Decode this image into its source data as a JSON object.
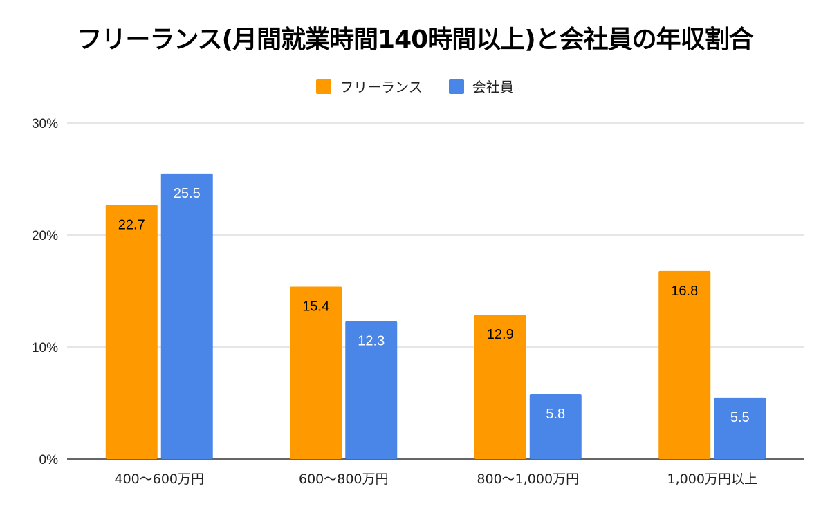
{
  "chart_data": {
    "type": "bar",
    "title": "フリーランス(月間就業時間140時間以上)と会社員の年収割合",
    "categories": [
      "400〜600万円",
      "600〜800万円",
      "800〜1,000万円",
      "1,000万円以上"
    ],
    "series": [
      {
        "name": "フリーランス",
        "color": "#FF9900",
        "label_color": "#000000",
        "values": [
          22.7,
          15.4,
          12.9,
          16.8
        ],
        "labels": [
          "22.7",
          "15.4",
          "12.9",
          "16.8"
        ]
      },
      {
        "name": "会社員",
        "color": "#4A86E8",
        "label_color": "#FFFFFF",
        "values": [
          25.5,
          12.3,
          5.8,
          5.5
        ],
        "labels": [
          "25.5",
          "12.3",
          "5.8",
          "5.5"
        ]
      }
    ],
    "y_ticks": [
      0,
      10,
      20,
      30
    ],
    "y_tick_labels": [
      "0%",
      "10%",
      "20%",
      "30%"
    ],
    "ylim": [
      0,
      30
    ],
    "xlabel": "",
    "ylabel": "",
    "legend_position": "top-center",
    "grid": true
  }
}
